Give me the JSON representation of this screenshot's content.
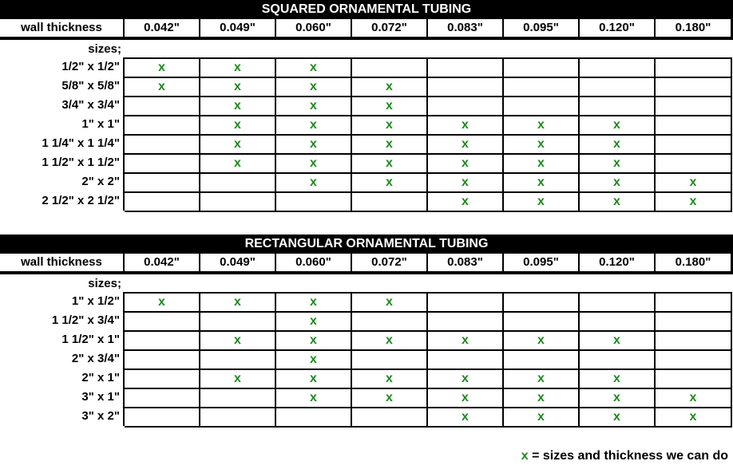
{
  "colors": {
    "check": "#1f8a1f",
    "header_bg": "#000000"
  },
  "wall_label": "wall thickness",
  "sizes_label": "sizes;",
  "thicknesses": [
    "0.042\"",
    "0.049\"",
    "0.060\"",
    "0.072\"",
    "0.083\"",
    "0.095\"",
    "0.120\"",
    "0.180\""
  ],
  "mark": "x",
  "squared": {
    "title": "SQUARED ORNAMENTAL TUBING",
    "rows": [
      {
        "size": "1/2\" x 1/2\"",
        "marks": [
          1,
          1,
          1,
          0,
          0,
          0,
          0,
          0
        ]
      },
      {
        "size": "5/8\" x 5/8\"",
        "marks": [
          1,
          1,
          1,
          1,
          0,
          0,
          0,
          0
        ]
      },
      {
        "size": "3/4\" x 3/4\"",
        "marks": [
          0,
          1,
          1,
          1,
          0,
          0,
          0,
          0
        ]
      },
      {
        "size": "1\" x 1\"",
        "marks": [
          0,
          1,
          1,
          1,
          1,
          1,
          1,
          0
        ]
      },
      {
        "size": "1 1/4\" x 1 1/4\"",
        "marks": [
          0,
          1,
          1,
          1,
          1,
          1,
          1,
          0
        ]
      },
      {
        "size": "1 1/2\" x 1 1/2\"",
        "marks": [
          0,
          1,
          1,
          1,
          1,
          1,
          1,
          0
        ]
      },
      {
        "size": "2\" x 2\"",
        "marks": [
          0,
          0,
          1,
          1,
          1,
          1,
          1,
          1
        ]
      },
      {
        "size": "2 1/2\" x 2 1/2\"",
        "marks": [
          0,
          0,
          0,
          0,
          1,
          1,
          1,
          1
        ]
      }
    ]
  },
  "rectangular": {
    "title": "RECTANGULAR ORNAMENTAL TUBING",
    "rows": [
      {
        "size": "1\" x 1/2\"",
        "marks": [
          1,
          1,
          1,
          1,
          0,
          0,
          0,
          0
        ]
      },
      {
        "size": "1 1/2\" x 3/4\"",
        "marks": [
          0,
          0,
          1,
          0,
          0,
          0,
          0,
          0
        ]
      },
      {
        "size": "1 1/2\" x 1\"",
        "marks": [
          0,
          1,
          1,
          1,
          1,
          1,
          1,
          0
        ]
      },
      {
        "size": "2\" x 3/4\"",
        "marks": [
          0,
          0,
          1,
          0,
          0,
          0,
          0,
          0
        ]
      },
      {
        "size": "2\" x 1\"",
        "marks": [
          0,
          1,
          1,
          1,
          1,
          1,
          1,
          0
        ]
      },
      {
        "size": "3\" x 1\"",
        "marks": [
          0,
          0,
          1,
          1,
          1,
          1,
          1,
          1
        ]
      },
      {
        "size": "3\" x 2\"",
        "marks": [
          0,
          0,
          0,
          0,
          1,
          1,
          1,
          1
        ]
      }
    ]
  },
  "legend": {
    "mark": "x",
    "text": " = sizes and thickness we can do"
  }
}
